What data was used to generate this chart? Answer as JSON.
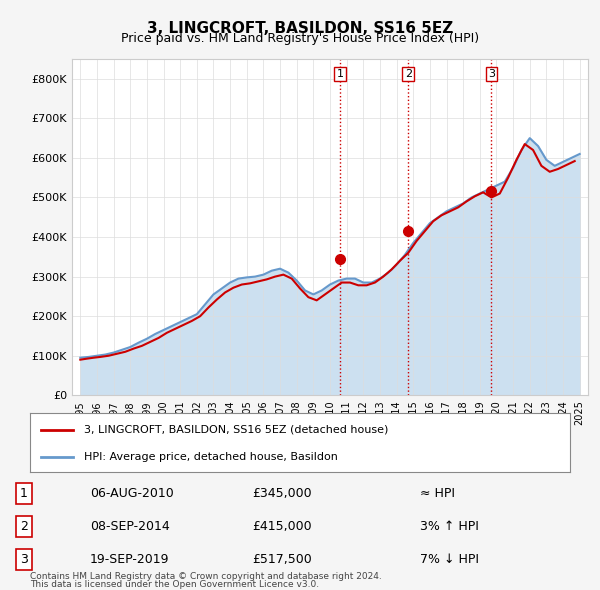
{
  "title": "3, LINGCROFT, BASILDON, SS16 5EZ",
  "subtitle": "Price paid vs. HM Land Registry's House Price Index (HPI)",
  "legend_line1": "3, LINGCROFT, BASILDON, SS16 5EZ (detached house)",
  "legend_line2": "HPI: Average price, detached house, Basildon",
  "footer1": "Contains HM Land Registry data © Crown copyright and database right 2024.",
  "footer2": "This data is licensed under the Open Government Licence v3.0.",
  "sale_points": [
    {
      "label": "1",
      "date": "06-AUG-2010",
      "price": 345000,
      "note": "≈ HPI",
      "x": 2010.6
    },
    {
      "label": "2",
      "date": "08-SEP-2014",
      "price": 415000,
      "note": "3% ↑ HPI",
      "x": 2014.7
    },
    {
      "label": "3",
      "date": "19-SEP-2019",
      "price": 517500,
      "note": "7% ↓ HPI",
      "x": 2019.7
    }
  ],
  "vline_color": "#cc0000",
  "vline_style": ":",
  "sale_marker_color": "#cc0000",
  "hpi_line_color": "#6699cc",
  "hpi_fill_color": "#cce0f0",
  "price_line_color": "#cc0000",
  "ylim": [
    0,
    850000
  ],
  "yticks": [
    0,
    100000,
    200000,
    300000,
    400000,
    500000,
    600000,
    700000,
    800000
  ],
  "ytick_labels": [
    "£0",
    "£100K",
    "£200K",
    "£300K",
    "£400K",
    "£500K",
    "£600K",
    "£700K",
    "£800K"
  ],
  "xlim_start": 1994.5,
  "xlim_end": 2025.5,
  "xticks": [
    1995,
    1996,
    1997,
    1998,
    1999,
    2000,
    2001,
    2002,
    2003,
    2004,
    2005,
    2006,
    2007,
    2008,
    2009,
    2010,
    2011,
    2012,
    2013,
    2014,
    2015,
    2016,
    2017,
    2018,
    2019,
    2020,
    2021,
    2022,
    2023,
    2024,
    2025
  ],
  "hpi_data_x": [
    1995,
    1995.5,
    1996,
    1996.5,
    1997,
    1997.5,
    1998,
    1998.5,
    1999,
    1999.5,
    2000,
    2000.5,
    2001,
    2001.5,
    2002,
    2002.5,
    2003,
    2003.5,
    2004,
    2004.5,
    2005,
    2005.5,
    2006,
    2006.5,
    2007,
    2007.5,
    2008,
    2008.5,
    2009,
    2009.5,
    2010,
    2010.5,
    2011,
    2011.5,
    2012,
    2012.5,
    2013,
    2013.5,
    2014,
    2014.5,
    2015,
    2015.5,
    2016,
    2016.5,
    2017,
    2017.5,
    2018,
    2018.5,
    2019,
    2019.5,
    2020,
    2020.5,
    2021,
    2021.5,
    2022,
    2022.5,
    2023,
    2023.5,
    2024,
    2024.5,
    2025
  ],
  "hpi_data_y": [
    95000,
    97000,
    100000,
    103000,
    108000,
    115000,
    122000,
    133000,
    143000,
    155000,
    165000,
    175000,
    185000,
    195000,
    205000,
    230000,
    255000,
    270000,
    285000,
    295000,
    298000,
    300000,
    305000,
    315000,
    320000,
    310000,
    290000,
    265000,
    255000,
    265000,
    280000,
    290000,
    295000,
    295000,
    285000,
    285000,
    295000,
    310000,
    330000,
    355000,
    385000,
    410000,
    435000,
    450000,
    465000,
    475000,
    485000,
    500000,
    510000,
    520000,
    530000,
    540000,
    575000,
    620000,
    650000,
    630000,
    595000,
    580000,
    590000,
    600000,
    610000
  ],
  "price_data_x": [
    1995,
    1995.3,
    1995.8,
    1996.2,
    1996.7,
    1997.2,
    1997.7,
    1998.2,
    1998.7,
    1999.2,
    1999.7,
    2000.2,
    2000.7,
    2001.2,
    2001.7,
    2002.2,
    2002.7,
    2003.2,
    2003.7,
    2004.2,
    2004.7,
    2005.2,
    2005.7,
    2006.2,
    2006.7,
    2007.2,
    2007.7,
    2008.2,
    2008.7,
    2009.2,
    2009.7,
    2010.2,
    2010.7,
    2011.2,
    2011.7,
    2012.2,
    2012.7,
    2013.2,
    2013.7,
    2014.2,
    2014.7,
    2015.2,
    2015.7,
    2016.2,
    2016.7,
    2017.2,
    2017.7,
    2018.2,
    2018.7,
    2019.2,
    2019.7,
    2020.2,
    2020.7,
    2021.2,
    2021.7,
    2022.2,
    2022.7,
    2023.2,
    2023.7,
    2024.2,
    2024.7
  ],
  "price_data_y": [
    90000,
    92000,
    95000,
    97000,
    100000,
    105000,
    110000,
    118000,
    125000,
    135000,
    145000,
    158000,
    168000,
    178000,
    188000,
    200000,
    222000,
    242000,
    260000,
    272000,
    280000,
    283000,
    288000,
    293000,
    300000,
    305000,
    295000,
    270000,
    248000,
    240000,
    255000,
    270000,
    285000,
    285000,
    278000,
    278000,
    285000,
    300000,
    318000,
    340000,
    360000,
    390000,
    415000,
    440000,
    455000,
    465000,
    475000,
    490000,
    503000,
    513000,
    500000,
    510000,
    550000,
    595000,
    635000,
    620000,
    580000,
    565000,
    572000,
    582000,
    592000
  ],
  "background_color": "#f5f5f5",
  "plot_background": "#ffffff",
  "grid_color": "#dddddd"
}
